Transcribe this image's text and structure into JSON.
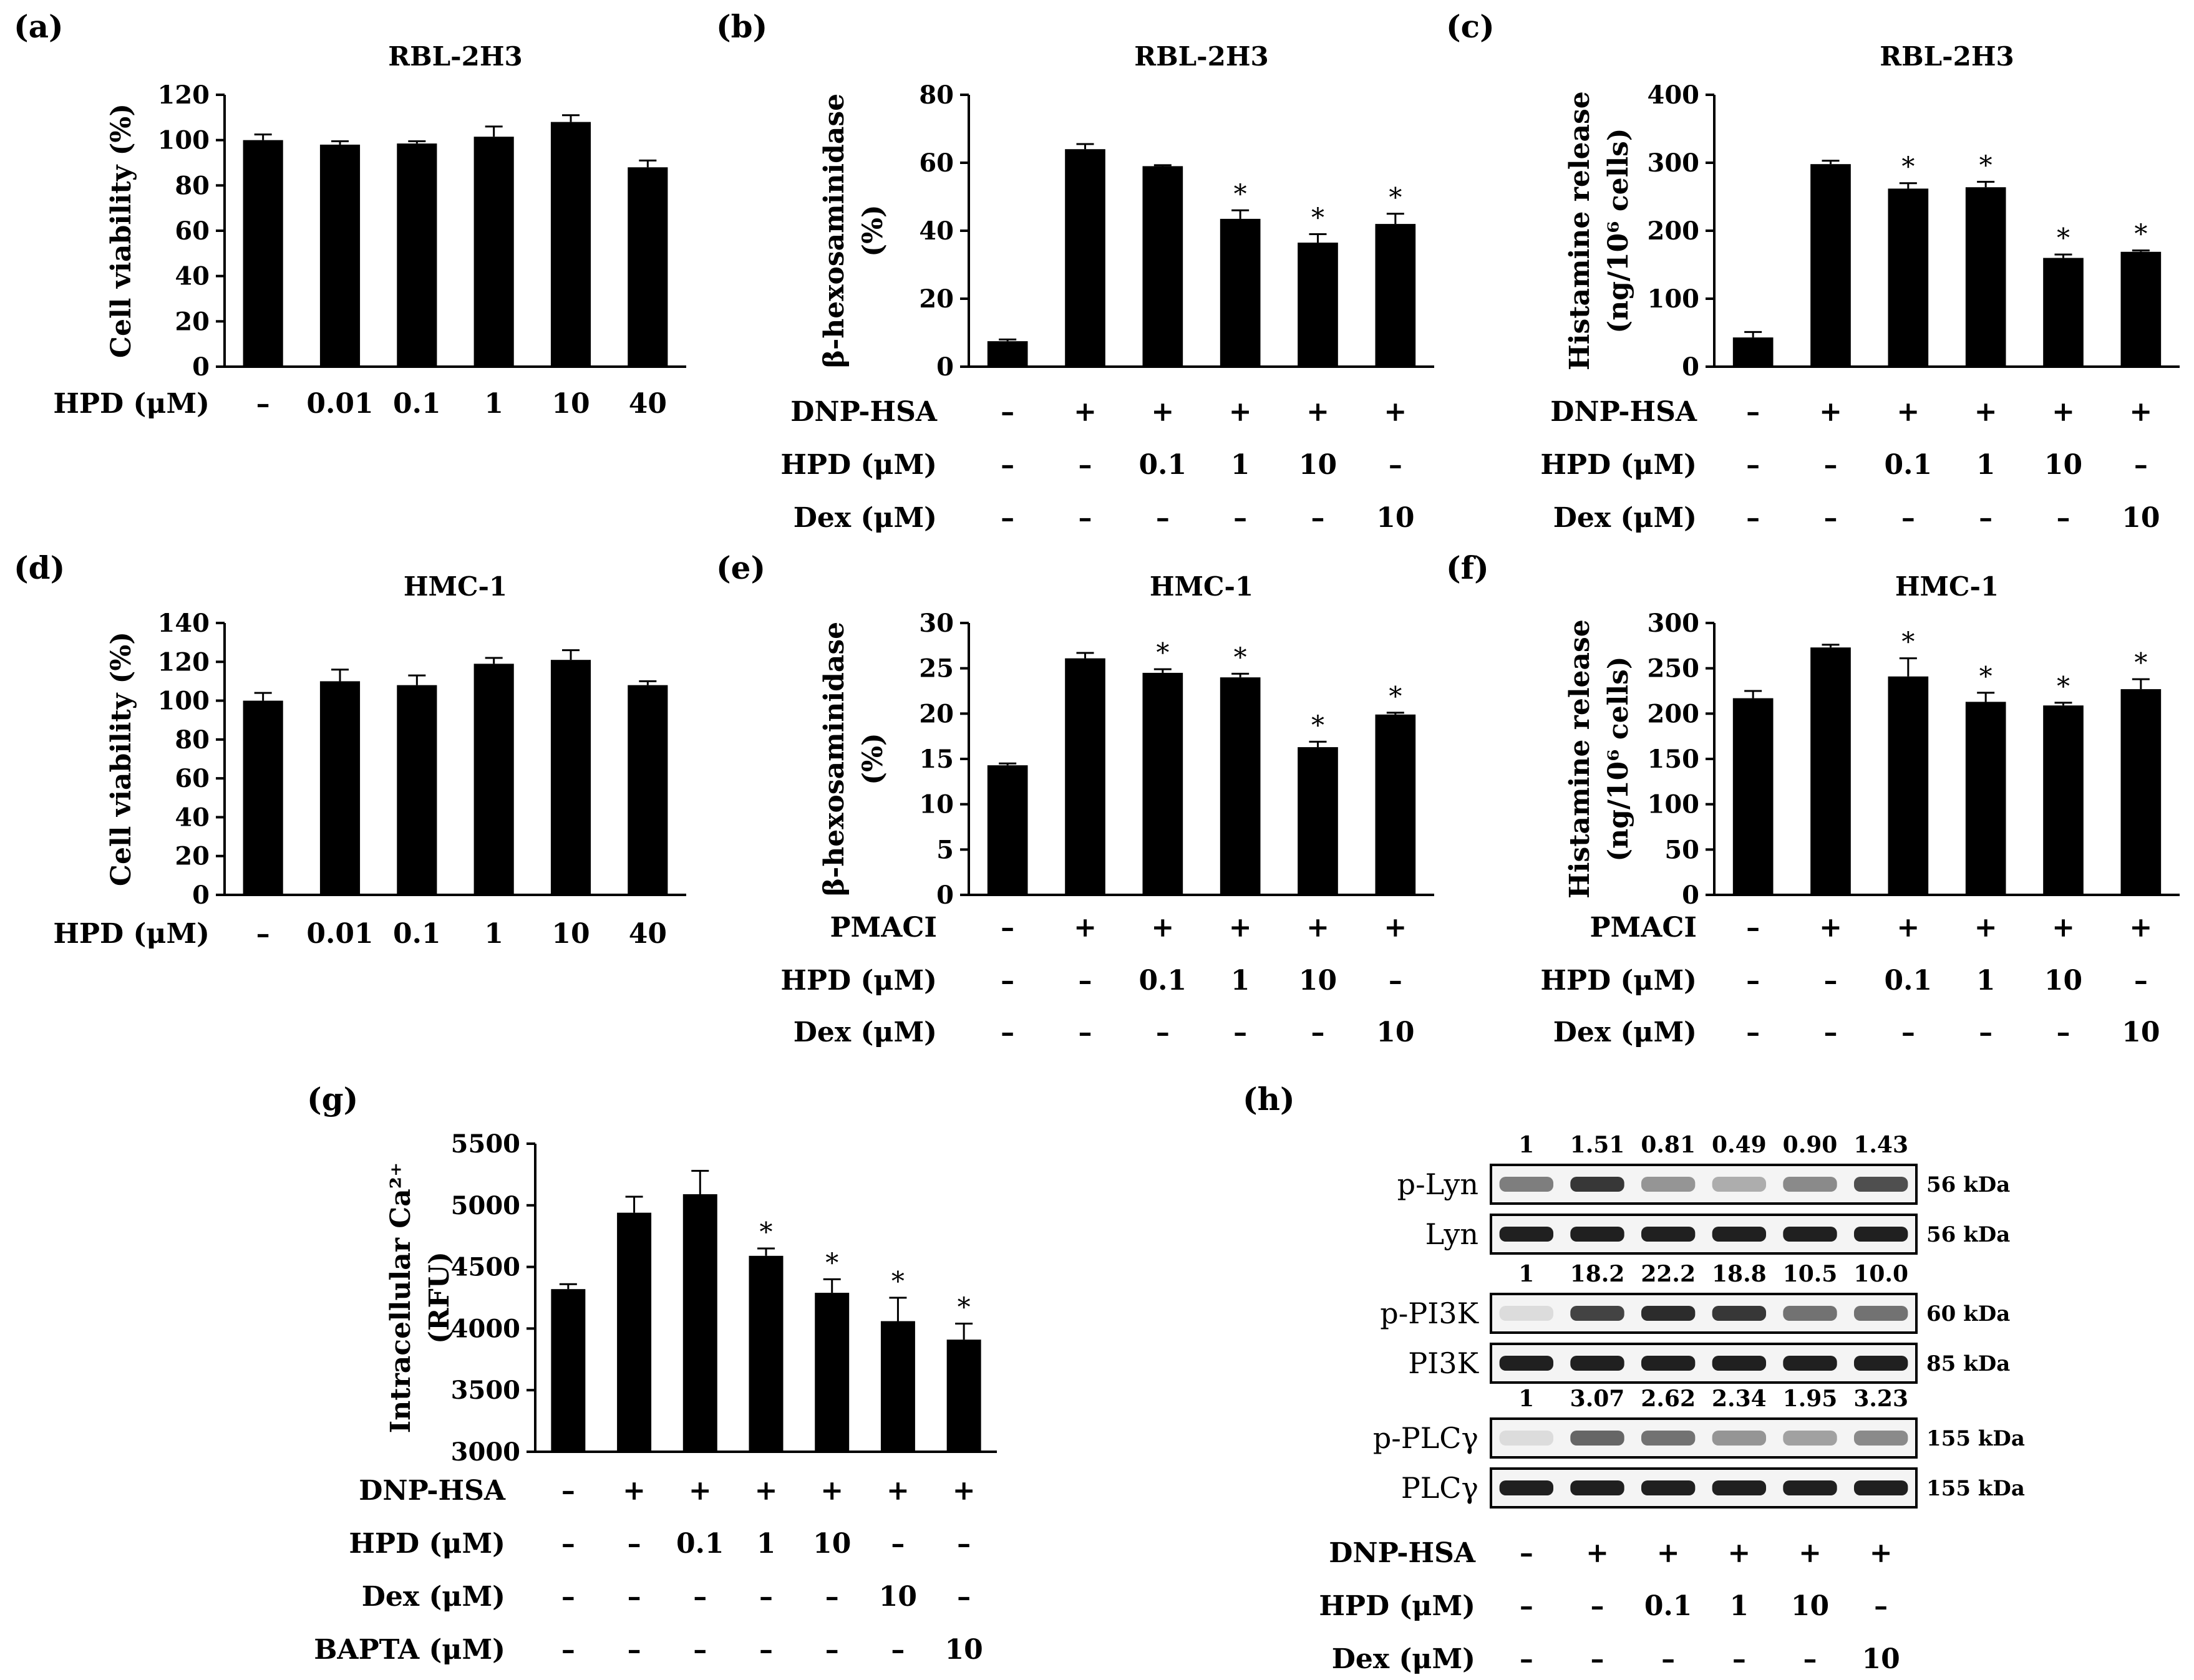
{
  "chart_data": [
    {
      "id": "a",
      "panel_label": "(a)",
      "type": "bar",
      "title": "RBL-2H3",
      "ylabel": "Cell viability (%)",
      "ylim": [
        0,
        120
      ],
      "yticks": [
        "0",
        "20",
        "40",
        "60",
        "80",
        "100",
        "120"
      ],
      "values": [
        100,
        98,
        98.5,
        101.5,
        108,
        88
      ],
      "errors": [
        2.5,
        1.5,
        1,
        4.5,
        3,
        3
      ],
      "sig": [
        false,
        false,
        false,
        false,
        false,
        false
      ],
      "conditions": [
        {
          "label": "HPD (μM)",
          "values": [
            "–",
            "0.01",
            "0.1",
            "1",
            "10",
            "40"
          ]
        }
      ]
    },
    {
      "id": "b",
      "panel_label": "(b)",
      "type": "bar",
      "title": "RBL-2H3",
      "ylabel": [
        "β-hexosaminidase",
        "(%)"
      ],
      "ylim": [
        0,
        80
      ],
      "yticks": [
        "0",
        "20",
        "40",
        "60",
        "80"
      ],
      "values": [
        7.5,
        64,
        59,
        43.5,
        36.5,
        42
      ],
      "errors": [
        0.5,
        1.5,
        0.3,
        2.5,
        2.5,
        3
      ],
      "sig": [
        false,
        false,
        false,
        true,
        true,
        true
      ],
      "conditions": [
        {
          "label": "DNP-HSA",
          "values": [
            "–",
            "+",
            "+",
            "+",
            "+",
            "+"
          ]
        },
        {
          "label": "HPD (μM)",
          "values": [
            "–",
            "–",
            "0.1",
            "1",
            "10",
            "–"
          ]
        },
        {
          "label": "Dex (μM)",
          "values": [
            "–",
            "–",
            "–",
            "–",
            "–",
            "10"
          ]
        }
      ]
    },
    {
      "id": "c",
      "panel_label": "(c)",
      "type": "bar",
      "title": "RBL-2H3",
      "ylabel": [
        "Histamine release",
        "(ng/10⁶ cells)"
      ],
      "ylim": [
        0,
        400
      ],
      "yticks": [
        "0",
        "100",
        "200",
        "300",
        "400"
      ],
      "values": [
        43,
        298,
        262,
        264,
        160,
        169
      ],
      "errors": [
        8,
        5,
        8,
        8,
        5,
        2
      ],
      "sig": [
        false,
        false,
        true,
        true,
        true,
        true
      ],
      "conditions": [
        {
          "label": "DNP-HSA",
          "values": [
            "–",
            "+",
            "+",
            "+",
            "+",
            "+"
          ]
        },
        {
          "label": "HPD (μM)",
          "values": [
            "–",
            "–",
            "0.1",
            "1",
            "10",
            "–"
          ]
        },
        {
          "label": "Dex (μM)",
          "values": [
            "–",
            "–",
            "–",
            "–",
            "–",
            "10"
          ]
        }
      ]
    },
    {
      "id": "d",
      "panel_label": "(d)",
      "type": "bar",
      "title": "HMC-1",
      "ylabel": "Cell viability (%)",
      "ylim": [
        0,
        140
      ],
      "yticks": [
        "0",
        "20",
        "40",
        "60",
        "80",
        "100",
        "120",
        "140"
      ],
      "values": [
        100,
        110,
        108,
        119,
        121,
        108
      ],
      "errors": [
        4,
        6,
        5,
        3,
        5,
        2
      ],
      "sig": [
        false,
        false,
        false,
        false,
        false,
        false
      ],
      "conditions": [
        {
          "label": "HPD (μM)",
          "values": [
            "–",
            "0.01",
            "0.1",
            "1",
            "10",
            "40"
          ]
        }
      ]
    },
    {
      "id": "e",
      "panel_label": "(e)",
      "type": "bar",
      "title": "HMC-1",
      "ylabel": [
        "β-hexosaminidase",
        "(%)"
      ],
      "ylim": [
        0,
        30
      ],
      "yticks": [
        "0",
        "5",
        "10",
        "15",
        "20",
        "25",
        "30"
      ],
      "values": [
        14.3,
        26.1,
        24.5,
        24,
        16.3,
        19.9
      ],
      "errors": [
        0.2,
        0.6,
        0.4,
        0.4,
        0.6,
        0.2
      ],
      "sig": [
        false,
        false,
        true,
        true,
        true,
        true
      ],
      "conditions": [
        {
          "label": "PMACI",
          "values": [
            "–",
            "+",
            "+",
            "+",
            "+",
            "+"
          ]
        },
        {
          "label": "HPD (μM)",
          "values": [
            "–",
            "–",
            "0.1",
            "1",
            "10",
            "–"
          ]
        },
        {
          "label": "Dex (μM)",
          "values": [
            "–",
            "–",
            "–",
            "–",
            "–",
            "10"
          ]
        }
      ]
    },
    {
      "id": "f",
      "panel_label": "(f)",
      "type": "bar",
      "title": "HMC-1",
      "ylabel": [
        "Histamine release",
        "(ng/10⁶ cells)"
      ],
      "ylim": [
        0,
        300
      ],
      "yticks": [
        "0",
        "50",
        "100",
        "150",
        "200",
        "250",
        "300"
      ],
      "values": [
        217,
        273,
        241,
        213,
        209,
        227
      ],
      "errors": [
        8,
        3,
        20,
        10,
        3,
        11
      ],
      "sig": [
        false,
        false,
        true,
        true,
        true,
        true
      ],
      "conditions": [
        {
          "label": "PMACI",
          "values": [
            "–",
            "+",
            "+",
            "+",
            "+",
            "+"
          ]
        },
        {
          "label": "HPD (μM)",
          "values": [
            "–",
            "–",
            "0.1",
            "1",
            "10",
            "–"
          ]
        },
        {
          "label": "Dex (μM)",
          "values": [
            "–",
            "–",
            "–",
            "–",
            "–",
            "10"
          ]
        }
      ]
    },
    {
      "id": "g",
      "panel_label": "(g)",
      "type": "bar",
      "title": "",
      "ylabel": [
        "Intracellular Ca²⁺",
        "(RFU)"
      ],
      "ylim": [
        3000,
        5500
      ],
      "yticks": [
        "3000",
        "3500",
        "4000",
        "4500",
        "5000",
        "5500"
      ],
      "values": [
        4320,
        4940,
        5090,
        4590,
        4290,
        4060,
        3910
      ],
      "errors": [
        40,
        130,
        190,
        60,
        110,
        190,
        130
      ],
      "sig": [
        false,
        false,
        false,
        true,
        true,
        true,
        true
      ],
      "conditions": [
        {
          "label": "DNP-HSA",
          "values": [
            "–",
            "+",
            "+",
            "+",
            "+",
            "+",
            "+"
          ]
        },
        {
          "label": "HPD (μM)",
          "values": [
            "–",
            "–",
            "0.1",
            "1",
            "10",
            "–",
            "–"
          ]
        },
        {
          "label": "Dex (μM)",
          "values": [
            "–",
            "–",
            "–",
            "–",
            "–",
            "10",
            "–"
          ]
        },
        {
          "label": "BAPTA (μM)",
          "values": [
            "–",
            "–",
            "–",
            "–",
            "–",
            "–",
            "10"
          ]
        }
      ]
    }
  ],
  "western": {
    "panel_label": "(h)",
    "blots": [
      {
        "label": "p-Lyn",
        "kda": "56 kDa",
        "quant": [
          "1",
          "1.51",
          "0.81",
          "0.49",
          "0.90",
          "1.43"
        ],
        "intensity": [
          0.55,
          0.85,
          0.45,
          0.35,
          0.5,
          0.75
        ]
      },
      {
        "label": "Lyn",
        "kda": "56 kDa",
        "quant": [],
        "intensity": [
          0.95,
          0.95,
          0.95,
          0.95,
          0.95,
          0.95
        ]
      },
      {
        "label": "p-PI3K",
        "kda": "60 kDa",
        "quant": [
          "1",
          "18.2",
          "22.2",
          "18.8",
          "10.5",
          "10.0"
        ],
        "intensity": [
          0.15,
          0.8,
          0.9,
          0.85,
          0.6,
          0.6
        ]
      },
      {
        "label": "PI3K",
        "kda": "85 kDa",
        "quant": [],
        "intensity": [
          0.95,
          0.95,
          0.95,
          0.95,
          0.95,
          0.95
        ]
      },
      {
        "label": "p-PLCγ",
        "kda": "155 kDa",
        "quant": [
          "1",
          "3.07",
          "2.62",
          "2.34",
          "1.95",
          "3.23"
        ],
        "intensity": [
          0.15,
          0.65,
          0.6,
          0.45,
          0.4,
          0.5
        ]
      },
      {
        "label": "PLCγ",
        "kda": "155 kDa",
        "quant": [],
        "intensity": [
          0.95,
          0.95,
          0.95,
          0.95,
          0.95,
          0.95
        ]
      }
    ],
    "conditions": [
      {
        "label": "DNP-HSA",
        "values": [
          "–",
          "+",
          "+",
          "+",
          "+",
          "+"
        ]
      },
      {
        "label": "HPD (μM)",
        "values": [
          "–",
          "–",
          "0.1",
          "1",
          "10",
          "–"
        ]
      },
      {
        "label": "Dex (μM)",
        "values": [
          "–",
          "–",
          "–",
          "–",
          "–",
          "10"
        ]
      }
    ]
  },
  "significance_marker": "*"
}
